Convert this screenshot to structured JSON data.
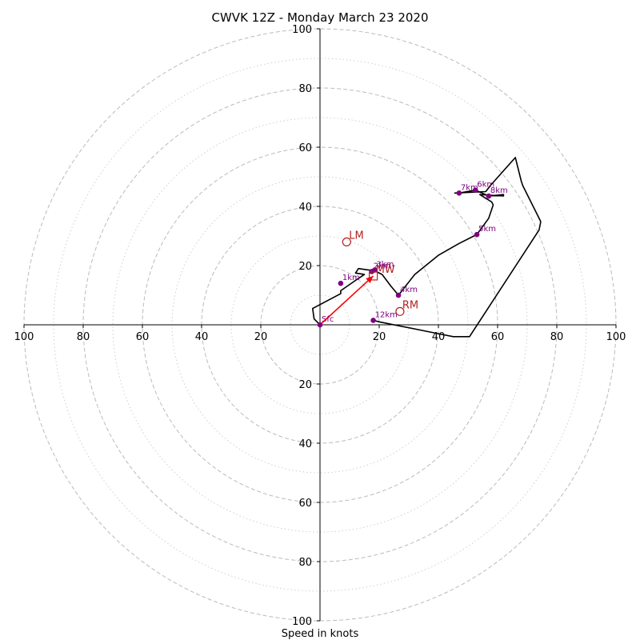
{
  "chart_data": {
    "type": "hodograph",
    "title": "CWVK 12Z - Monday March 23 2020",
    "xlabel": "Speed in knots",
    "ylabel": "",
    "range": [
      -100,
      100
    ],
    "major_rings": [
      20,
      40,
      60,
      80,
      100
    ],
    "minor_rings": [
      10,
      30,
      50,
      70,
      90
    ],
    "x_tick_labels": [
      "100",
      "80",
      "60",
      "40",
      "20",
      "20",
      "40",
      "60",
      "80",
      "100"
    ],
    "x_tick_values": [
      -100,
      -80,
      -60,
      -40,
      -20,
      20,
      40,
      60,
      80,
      100
    ],
    "y_tick_labels": [
      "100",
      "80",
      "60",
      "40",
      "20",
      "20",
      "40",
      "60",
      "80",
      "100"
    ],
    "y_tick_values": [
      100,
      80,
      60,
      40,
      20,
      -20,
      -40,
      -60,
      -80,
      -100
    ],
    "colors": {
      "trace": "#000000",
      "height_marker": "#800080",
      "motion": "#b22222",
      "shear_vector": "#ff0000",
      "grid": "#bbbbbb"
    },
    "trace": [
      [
        0,
        0
      ],
      [
        -2,
        2
      ],
      [
        -2.5,
        5.5
      ],
      [
        7,
        10.5
      ],
      [
        7,
        11.5
      ],
      [
        12,
        15
      ],
      [
        15,
        17
      ],
      [
        12,
        17.5
      ],
      [
        13,
        19
      ],
      [
        16.5,
        18.5
      ],
      [
        18,
        18.5
      ],
      [
        21,
        17
      ],
      [
        24,
        13
      ],
      [
        26.5,
        10
      ],
      [
        32,
        17
      ],
      [
        40,
        23.5
      ],
      [
        47,
        27.5
      ],
      [
        53,
        30.5
      ],
      [
        57,
        36
      ],
      [
        58.5,
        40.5
      ],
      [
        58,
        41.5
      ],
      [
        54,
        44
      ],
      [
        62,
        43.5
      ],
      [
        62,
        44
      ],
      [
        57,
        43.5
      ],
      [
        52.5,
        45.5
      ],
      [
        47,
        44.5
      ],
      [
        45.5,
        44.5
      ],
      [
        56,
        45
      ],
      [
        57.5,
        47
      ],
      [
        66,
        56.5
      ],
      [
        68,
        48.5
      ],
      [
        68.5,
        47
      ],
      [
        74.5,
        35
      ],
      [
        74.5,
        34.5
      ],
      [
        74,
        32
      ],
      [
        50.5,
        -4
      ],
      [
        45,
        -4
      ],
      [
        40,
        -3
      ],
      [
        20,
        1
      ],
      [
        18,
        1.5
      ]
    ],
    "height_points": [
      {
        "label": "Sfc",
        "u": 0,
        "v": 0
      },
      {
        "label": "1km",
        "u": 7,
        "v": 14
      },
      {
        "label": "2km",
        "u": 17.5,
        "v": 18
      },
      {
        "label": "3km",
        "u": 18.5,
        "v": 18.5
      },
      {
        "label": "4km",
        "u": 26.5,
        "v": 10
      },
      {
        "label": "5km",
        "u": 53,
        "v": 30.5
      },
      {
        "label": "6km",
        "u": 52.5,
        "v": 45.5
      },
      {
        "label": "7km",
        "u": 47,
        "v": 44.5
      },
      {
        "label": "8km",
        "u": 57,
        "v": 43.5
      },
      {
        "label": "12km",
        "u": 18,
        "v": 1.5
      }
    ],
    "storm_motions": [
      {
        "label": "LM",
        "u": 9,
        "v": 28,
        "marker": "circle"
      },
      {
        "label": "RM",
        "u": 27,
        "v": 4.5,
        "marker": "circle"
      },
      {
        "label": "MW",
        "u": 18,
        "v": 16.5,
        "marker": "square"
      }
    ],
    "shear_vector": {
      "from": [
        0,
        0
      ],
      "to": [
        18,
        16.5
      ]
    }
  }
}
